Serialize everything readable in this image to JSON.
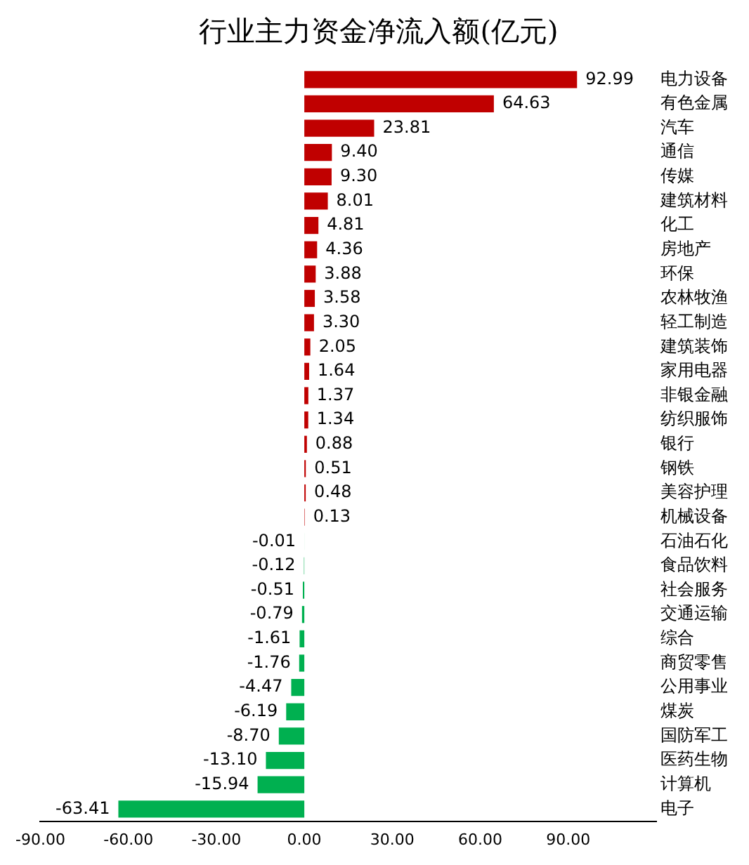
{
  "chart_data": {
    "type": "bar",
    "orientation": "horizontal",
    "title": "行业主力资金净流入额(亿元)",
    "categories": [
      "电力设备",
      "有色金属",
      "汽车",
      "通信",
      "传媒",
      "建筑材料",
      "化工",
      "房地产",
      "环保",
      "农林牧渔",
      "轻工制造",
      "建筑装饰",
      "家用电器",
      "非银金融",
      "纺织服饰",
      "银行",
      "钢铁",
      "美容护理",
      "机械设备",
      "石油石化",
      "食品饮料",
      "社会服务",
      "交通运输",
      "综合",
      "商贸零售",
      "公用事业",
      "煤炭",
      "国防军工",
      "医药生物",
      "计算机",
      "电子"
    ],
    "values": [
      92.99,
      64.63,
      23.81,
      9.4,
      9.3,
      8.01,
      4.81,
      4.36,
      3.88,
      3.58,
      3.3,
      2.05,
      1.64,
      1.37,
      1.34,
      0.88,
      0.51,
      0.48,
      0.13,
      -0.01,
      -0.12,
      -0.51,
      -0.79,
      -1.61,
      -1.76,
      -4.47,
      -6.19,
      -8.7,
      -13.1,
      -15.94,
      -63.41
    ],
    "value_labels": [
      "92.99",
      "64.63",
      "23.81",
      "9.40",
      "9.30",
      "8.01",
      "4.81",
      "4.36",
      "3.88",
      "3.58",
      "3.30",
      "2.05",
      "1.64",
      "1.37",
      "1.34",
      "0.88",
      "0.51",
      "0.48",
      "0.13",
      "-0.01",
      "-0.12",
      "-0.51",
      "-0.79",
      "-1.61",
      "-1.76",
      "-4.47",
      "-6.19",
      "-8.70",
      "-13.10",
      "-15.94",
      "-63.41"
    ],
    "colors": [
      "#c00000",
      "#c00000",
      "#c00000",
      "#c00000",
      "#c00000",
      "#c00000",
      "#c00000",
      "#c00000",
      "#c00000",
      "#c00000",
      "#c00000",
      "#c00000",
      "#c00000",
      "#c00000",
      "#c00000",
      "#c00000",
      "#c00000",
      "#c00000",
      "#c00000",
      "#00b050",
      "#00b050",
      "#00b050",
      "#00b050",
      "#00b050",
      "#00b050",
      "#00b050",
      "#00b050",
      "#00b050",
      "#00b050",
      "#00b050",
      "#00b050"
    ],
    "xlim": [
      -90,
      120
    ],
    "xticks": [
      {
        "value": -90,
        "label": "-90.00"
      },
      {
        "value": -60,
        "label": "-60.00"
      },
      {
        "value": -30,
        "label": "-30.00"
      },
      {
        "value": 0,
        "label": "0.00"
      },
      {
        "value": 30,
        "label": "30.00"
      },
      {
        "value": 60,
        "label": "60.00"
      },
      {
        "value": 90,
        "label": "90.00"
      }
    ],
    "grid": false,
    "legend": false
  }
}
